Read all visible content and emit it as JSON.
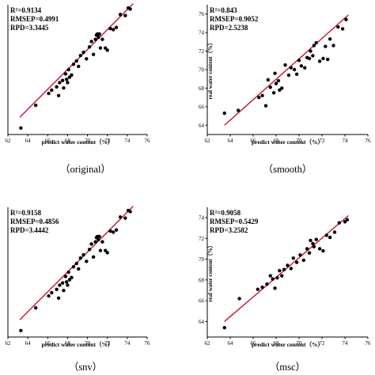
{
  "chart_data": [
    {
      "type": "scatter",
      "caption": "（original）",
      "stats": [
        "R²=0.9134",
        "RMSEP=0.4991",
        "RPD=3.3445"
      ],
      "xlabel": "predict water content（%）",
      "ylabel": "",
      "xlim": [
        62,
        76
      ],
      "ylim": [
        63,
        75
      ],
      "xticks": [
        "62",
        "64",
        "66",
        "68",
        "70",
        "72",
        "74",
        "76"
      ],
      "yticks": [],
      "fit_line": {
        "x": [
          63.2,
          74.6
        ],
        "y": [
          64.6,
          75.1
        ]
      },
      "points": {
        "x": [
          63.3,
          64.8,
          66.1,
          66.4,
          66.9,
          67.1,
          67.2,
          67.5,
          67.6,
          67.8,
          67.9,
          68.0,
          68.1,
          68.2,
          68.4,
          68.6,
          68.9,
          69.1,
          69.3,
          69.6,
          69.9,
          70.2,
          70.4,
          70.6,
          70.8,
          70.9,
          71.0,
          71.1,
          71.2,
          71.3,
          71.5,
          71.8,
          72.0,
          72.3,
          72.6,
          72.9,
          73.3,
          73.8,
          74.1,
          74.3
        ],
        "y": [
          63.6,
          65.7,
          66.8,
          67.1,
          67.4,
          66.6,
          67.8,
          68.0,
          67.3,
          68.6,
          68.1,
          67.8,
          69.0,
          68.3,
          68.5,
          69.5,
          69.8,
          69.3,
          70.3,
          70.6,
          70.0,
          71.1,
          71.6,
          70.4,
          71.8,
          72.2,
          72.3,
          72.0,
          72.3,
          71.0,
          71.8,
          71.0,
          70.8,
          72.8,
          72.7,
          72.9,
          74.1,
          74.0,
          74.7,
          74.6
        ]
      }
    },
    {
      "type": "scatter",
      "caption": "（smooth）",
      "stats": [
        "R²=0.843",
        "RMSEP=0.9052",
        "RPD=2.5238"
      ],
      "xlabel": "predict water content（%）",
      "ylabel": "real water content（%）",
      "xlim": [
        62,
        76
      ],
      "ylim": [
        63,
        77
      ],
      "xticks": [
        "62",
        "64",
        "66",
        "68",
        "70",
        "72",
        "74",
        "76"
      ],
      "yticks": [
        "64",
        "66",
        "68",
        "70",
        "72",
        "74",
        "76"
      ],
      "fit_line": {
        "x": [
          63.5,
          74.3
        ],
        "y": [
          64.0,
          75.9
        ]
      },
      "points": {
        "x": [
          63.5,
          64.7,
          66.5,
          66.8,
          67.1,
          67.3,
          67.5,
          67.8,
          67.9,
          68.0,
          68.2,
          68.3,
          68.5,
          68.8,
          69.1,
          69.3,
          69.6,
          69.8,
          70.0,
          70.2,
          70.5,
          70.7,
          70.9,
          71.0,
          71.2,
          71.3,
          71.5,
          71.8,
          72.1,
          72.3,
          72.5,
          72.7,
          73.0,
          73.4,
          73.8,
          74.1
        ],
        "y": [
          65.3,
          65.6,
          67.0,
          67.2,
          66.1,
          68.9,
          68.1,
          67.5,
          69.6,
          68.5,
          68.8,
          67.8,
          68.0,
          70.5,
          69.4,
          70.2,
          70.0,
          69.5,
          71.0,
          70.4,
          70.2,
          71.3,
          71.2,
          72.0,
          71.5,
          72.6,
          72.9,
          70.9,
          71.2,
          72.5,
          71.1,
          73.3,
          72.6,
          74.6,
          74.4,
          75.4
        ]
      }
    },
    {
      "type": "scatter",
      "caption": "（snv）",
      "stats": [
        "R²=0.9158",
        "RMSEP=0.4856",
        "RPD=3.4442"
      ],
      "xlabel": "predict water content（%）",
      "ylabel": "",
      "xlim": [
        62,
        76
      ],
      "ylim": [
        63,
        75
      ],
      "xticks": [
        "62",
        "64",
        "66",
        "68",
        "70",
        "72",
        "74",
        "76"
      ],
      "yticks": [],
      "fit_line": {
        "x": [
          63.2,
          74.6
        ],
        "y": [
          64.6,
          75.1
        ]
      },
      "points": {
        "x": [
          63.3,
          64.8,
          66.1,
          66.4,
          66.9,
          67.1,
          67.2,
          67.5,
          67.6,
          67.8,
          67.9,
          68.0,
          68.1,
          68.2,
          68.4,
          68.6,
          68.9,
          69.1,
          69.3,
          69.6,
          69.9,
          70.2,
          70.4,
          70.6,
          70.8,
          70.9,
          71.0,
          71.1,
          71.2,
          71.3,
          71.5,
          71.8,
          72.0,
          72.3,
          72.6,
          72.9,
          73.3,
          73.8,
          74.1,
          74.3
        ],
        "y": [
          63.6,
          65.7,
          66.8,
          67.1,
          67.4,
          66.6,
          67.8,
          68.0,
          67.3,
          68.6,
          68.1,
          67.8,
          69.0,
          68.3,
          68.5,
          69.5,
          69.8,
          69.3,
          70.3,
          70.6,
          70.0,
          71.1,
          71.6,
          70.4,
          71.8,
          72.2,
          72.3,
          72.0,
          72.3,
          71.0,
          71.8,
          71.0,
          70.8,
          72.8,
          72.7,
          72.9,
          74.1,
          74.0,
          74.7,
          74.6
        ]
      }
    },
    {
      "type": "scatter",
      "caption": "（msc）",
      "stats": [
        "R²=0.9058",
        "RMSEP=0.5429",
        "RPD=3.2582"
      ],
      "xlabel": "predict water content（%）",
      "ylabel": "real water content（%）",
      "xlim": [
        62,
        76
      ],
      "ylim": [
        62.5,
        75
      ],
      "xticks": [
        "62",
        "64",
        "66",
        "68",
        "70",
        "72",
        "74",
        "76"
      ],
      "yticks": [
        "64",
        "66",
        "68",
        "70",
        "72",
        "74"
      ],
      "fit_line": {
        "x": [
          63.5,
          74.3
        ],
        "y": [
          64.0,
          74.2
        ]
      },
      "points": {
        "x": [
          63.5,
          64.8,
          66.4,
          66.8,
          67.2,
          67.5,
          67.7,
          67.9,
          68.1,
          68.3,
          68.5,
          68.7,
          69.0,
          69.3,
          69.5,
          69.8,
          70.1,
          70.4,
          70.7,
          70.9,
          71.0,
          71.2,
          71.3,
          71.5,
          71.8,
          72.1,
          72.4,
          72.7,
          73.1,
          73.5,
          74.0,
          74.2
        ],
        "y": [
          63.4,
          66.2,
          67.1,
          67.3,
          67.6,
          68.4,
          68.1,
          67.2,
          68.2,
          68.9,
          68.4,
          69.0,
          69.4,
          69.1,
          70.1,
          69.7,
          70.4,
          69.9,
          71.0,
          70.6,
          71.8,
          71.5,
          71.2,
          71.9,
          71.0,
          70.8,
          72.3,
          72.1,
          72.6,
          73.5,
          73.6,
          73.8
        ]
      }
    }
  ]
}
